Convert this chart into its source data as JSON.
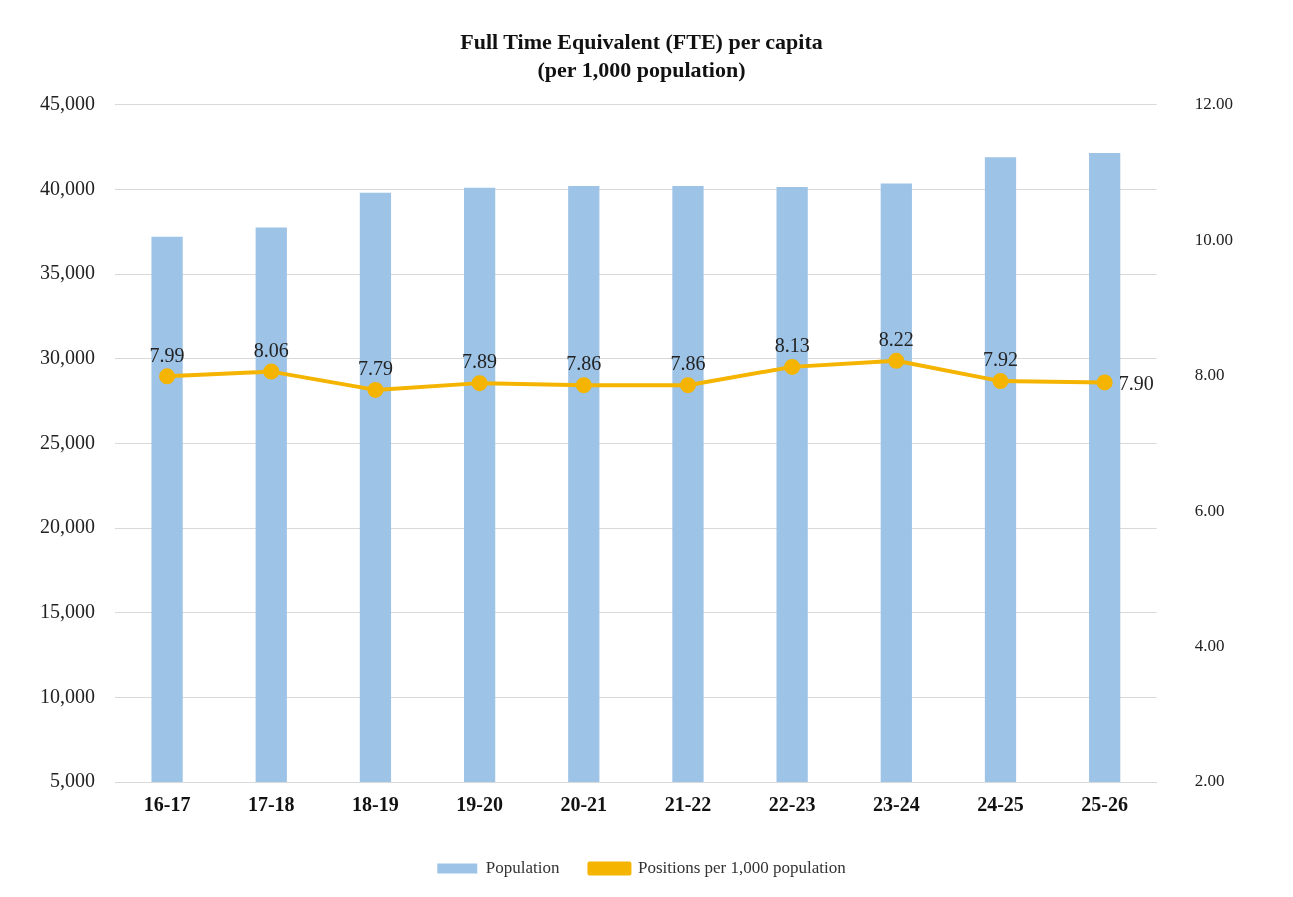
{
  "chart_data": {
    "type": "bar",
    "title": "Full Time Equivalent (FTE) per capita",
    "subtitle": "(per 1,000 population)",
    "categories": [
      "16-17",
      "17-18",
      "18-19",
      "19-20",
      "20-21",
      "21-22",
      "22-23",
      "23-24",
      "24-25",
      "25-26"
    ],
    "series": [
      {
        "name": "Population",
        "color": "#9dc3e6",
        "values": [
          37200,
          37750,
          39800,
          40100,
          40200,
          40200,
          40150,
          40350,
          41900,
          42150
        ]
      },
      {
        "name": "Positions per 1,000 population",
        "type": "line",
        "axis": "y2",
        "color": "#f4b400",
        "marker": "circle",
        "values": [
          7.99,
          8.06,
          7.79,
          7.89,
          7.86,
          7.86,
          8.13,
          8.22,
          7.92,
          7.9
        ],
        "value_labels": [
          "7.99",
          "8.06",
          "7.79",
          "7.89",
          "7.86",
          "7.86",
          "8.13",
          "8.22",
          "7.92",
          "7.90"
        ]
      }
    ],
    "ylim": [
      5000,
      45000
    ],
    "yticks": [
      {
        "value": 5000,
        "label": "5,000"
      },
      {
        "value": 10000,
        "label": "10,000"
      },
      {
        "value": 15000,
        "label": "15,000"
      },
      {
        "value": 20000,
        "label": "20,000"
      },
      {
        "value": 25000,
        "label": "25,000"
      },
      {
        "value": 30000,
        "label": "30,000"
      },
      {
        "value": 35000,
        "label": "35,000"
      },
      {
        "value": 40000,
        "label": "40,000"
      },
      {
        "value": 45000,
        "label": "45,000"
      }
    ],
    "y2lim": [
      2,
      12
    ],
    "y2ticks": [
      {
        "value": 2,
        "label": "2.00"
      },
      {
        "value": 4,
        "label": "4.00"
      },
      {
        "value": 6,
        "label": "6.00"
      },
      {
        "value": 8,
        "label": "8.00"
      },
      {
        "value": 10,
        "label": "10.00"
      },
      {
        "value": 12,
        "label": "12.00"
      }
    ],
    "grid": "y",
    "legend": "bottom"
  }
}
